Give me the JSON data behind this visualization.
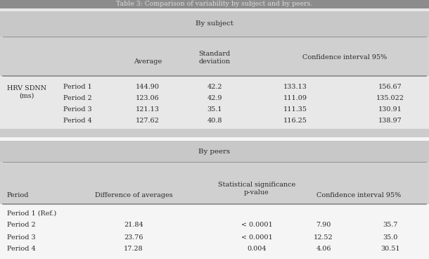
{
  "title": "Table 3: Comparison of variability by subject and by peers.",
  "title_bg": "#8c8c8c",
  "section_bg": "#c8c8c8",
  "header_bg": "#d0d0d0",
  "data_bg_subject": "#e8e8e8",
  "data_bg_peers": "#f5f5f5",
  "white_bg": "#f5f5f5",
  "fig_bg": "#f5f5f5",
  "by_subject_label": "By subject",
  "by_peers_label": "By peers",
  "subject_rows": [
    [
      "Period 1",
      "144.90",
      "42.2",
      "133.13",
      "156.67"
    ],
    [
      "Period 2",
      "123.06",
      "42.9",
      "111.09",
      "135.022"
    ],
    [
      "Period 3",
      "121.13",
      "35.1",
      "111.35",
      "130.91"
    ],
    [
      "Period 4",
      "127.62",
      "40.8",
      "116.25",
      "138.97"
    ]
  ],
  "peers_rows": [
    [
      "Period 1 (Ref.)",
      "",
      "",
      "",
      ""
    ],
    [
      "Period 2",
      "21.84",
      "< 0.0001",
      "7.90",
      "35.7"
    ],
    [
      "Period 3",
      "23.76",
      "< 0.0001",
      "12.52",
      "35.0"
    ],
    [
      "Period 4",
      "17.28",
      "0.004",
      "4.06",
      "30.51"
    ]
  ],
  "font_size": 7.2,
  "font_color": "#2a2a2a",
  "line_color": "#888888"
}
